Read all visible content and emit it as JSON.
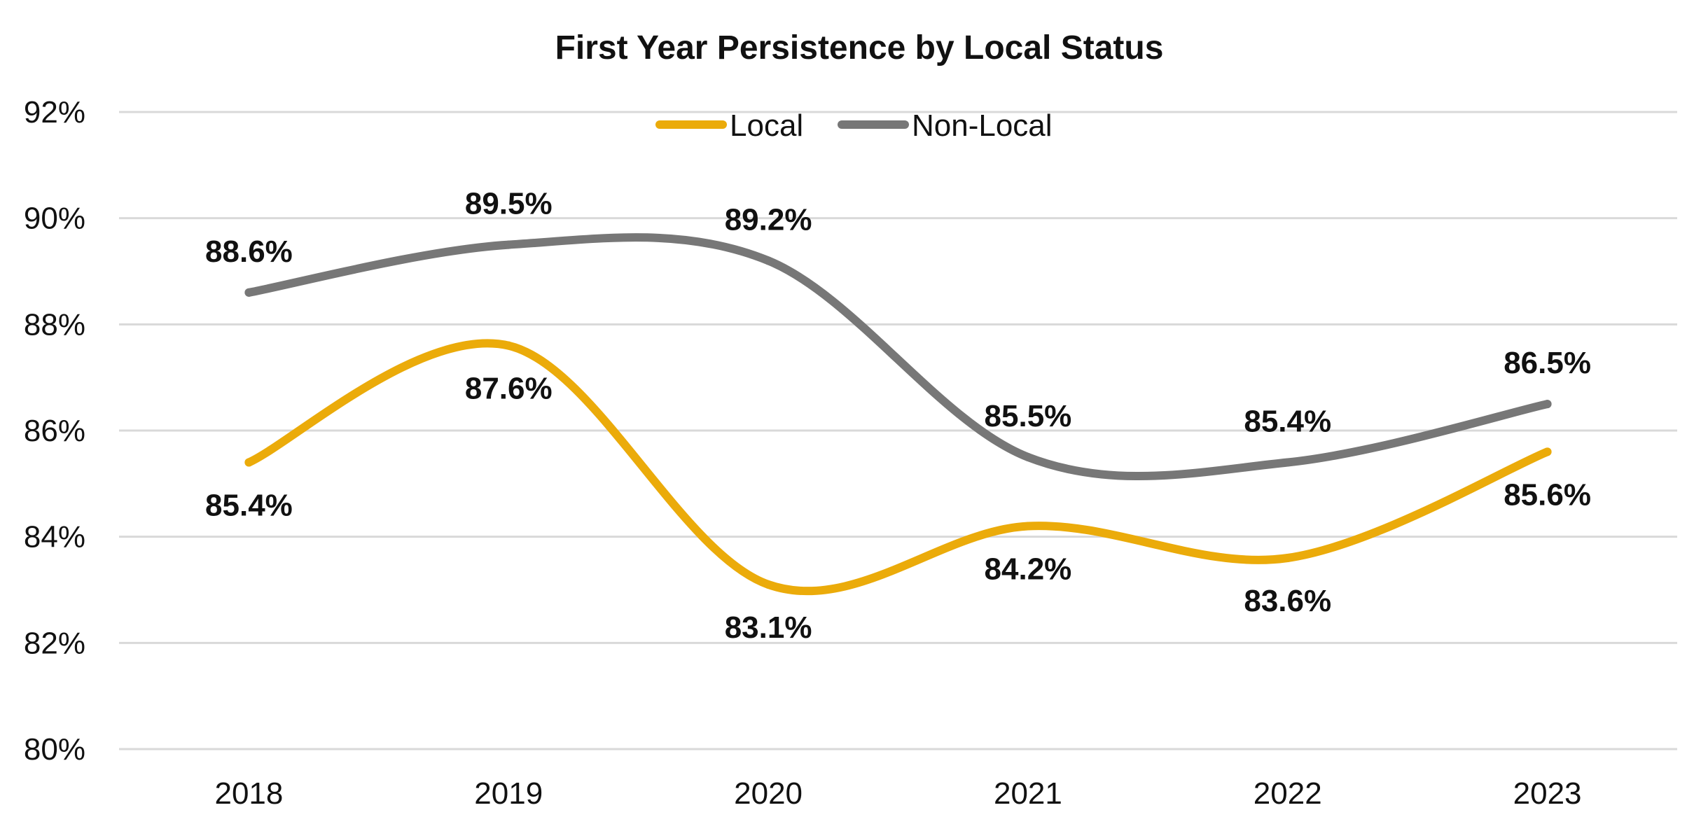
{
  "chart_data": {
    "type": "line",
    "title": "First Year Persistence by Local Status",
    "xlabel": "",
    "ylabel": "",
    "categories": [
      "2018",
      "2019",
      "2020",
      "2021",
      "2022",
      "2023"
    ],
    "ylim": [
      80,
      92
    ],
    "yticks": [
      80,
      82,
      84,
      86,
      88,
      90,
      92
    ],
    "ytick_labels": [
      "80%",
      "82%",
      "84%",
      "86%",
      "88%",
      "90%",
      "92%"
    ],
    "grid": true,
    "legend_position": "top-center",
    "series": [
      {
        "name": "Local",
        "color": "#EBAB0A",
        "values": [
          85.4,
          87.6,
          83.1,
          84.2,
          83.6,
          85.6
        ],
        "labels": [
          "85.4%",
          "87.6%",
          "83.1%",
          "84.2%",
          "83.6%",
          "85.6%"
        ],
        "label_side": [
          "below",
          "below",
          "below",
          "below",
          "below",
          "below"
        ]
      },
      {
        "name": "Non-Local",
        "color": "#777777",
        "values": [
          88.6,
          89.5,
          89.2,
          85.5,
          85.4,
          86.5
        ],
        "labels": [
          "88.6%",
          "89.5%",
          "89.2%",
          "85.5%",
          "85.4%",
          "86.5%"
        ],
        "label_side": [
          "above",
          "above",
          "above",
          "above",
          "above",
          "above"
        ]
      }
    ]
  }
}
